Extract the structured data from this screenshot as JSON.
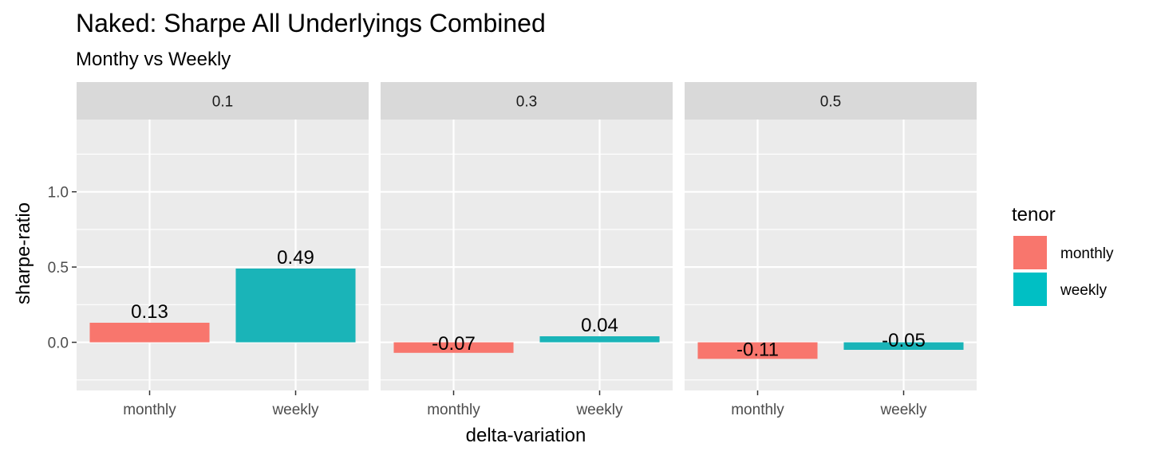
{
  "chart_data": {
    "type": "bar",
    "title": "Naked: Sharpe All Underlyings Combined",
    "subtitle": "Monthy vs Weekly",
    "xlabel": "delta-variation",
    "ylabel": "sharpe-ratio",
    "ylim": [
      -0.32,
      1.48
    ],
    "yticks": [
      0.0,
      0.5,
      1.0
    ],
    "ytick_labels": [
      "0.0",
      "0.5",
      "1.0"
    ],
    "categories": [
      "monthly",
      "weekly"
    ],
    "facets": [
      {
        "label": "0.1",
        "values": [
          0.13,
          0.49
        ],
        "labels": [
          "0.13",
          "0.49"
        ]
      },
      {
        "label": "0.3",
        "values": [
          -0.07,
          0.04
        ],
        "labels": [
          "-0.07",
          "0.04"
        ]
      },
      {
        "label": "0.5",
        "values": [
          -0.11,
          -0.05
        ],
        "labels": [
          "-0.11",
          "-0.05"
        ]
      }
    ],
    "legend": {
      "title": "tenor",
      "position": "right",
      "items": [
        {
          "name": "monthly",
          "color": "#F8766D"
        },
        {
          "name": "weekly",
          "color": "#00BFC4"
        }
      ]
    },
    "colors": {
      "monthly": "#F8766D",
      "weekly": "#1AB4B8"
    },
    "grid": true,
    "panel_background": "#EBEBEB",
    "strip_background": "#D9D9D9"
  }
}
